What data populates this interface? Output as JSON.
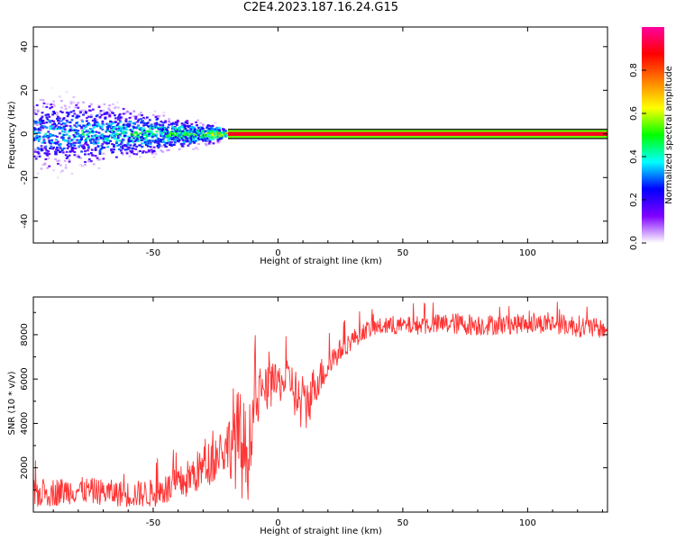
{
  "title": "C2E4.2023.187.16.24.G15",
  "chart_data": [
    {
      "type": "heatmap",
      "title": "",
      "xlabel": "Height of straight line (km)",
      "ylabel": "Frequency (Hz)",
      "xlim": [
        -98,
        132
      ],
      "ylim": [
        -50,
        49
      ],
      "xticks": [
        -50,
        0,
        50,
        100
      ],
      "yticks": [
        -40,
        -20,
        0,
        20,
        40
      ],
      "grid": false,
      "description_of_values": "Spectral power concentrated near 0 Hz; broad scatter (about ±20 Hz) below -20 km, collapsing to a narrow band near 0 Hz above about 25 km with high normalized amplitude.",
      "envelope": [
        {
          "x": -98,
          "half_width_hz": 20,
          "peak_amplitude": 0.35
        },
        {
          "x": -75,
          "half_width_hz": 17,
          "peak_amplitude": 0.4
        },
        {
          "x": -55,
          "half_width_hz": 12,
          "peak_amplitude": 0.45
        },
        {
          "x": -30,
          "half_width_hz": 6,
          "peak_amplitude": 0.5
        },
        {
          "x": -20,
          "half_width_hz": 3,
          "peak_amplitude": 0.8
        },
        {
          "x": 0,
          "half_width_hz": 2,
          "peak_amplitude": 0.85
        },
        {
          "x": 25,
          "half_width_hz": 1.5,
          "peak_amplitude": 0.9
        },
        {
          "x": 132,
          "half_width_hz": 1.5,
          "peak_amplitude": 0.92
        }
      ],
      "colorbar": {
        "label": "Normalized spectral amplitude",
        "ticks": [
          "0.0",
          "0.2",
          "0.4",
          "0.6",
          "0.8"
        ],
        "range": [
          0,
          1
        ],
        "colormap": [
          "#ffffff",
          "#7f00ff",
          "#0000ff",
          "#00ffff",
          "#00ff00",
          "#ffff00",
          "#ff7f00",
          "#ff0000",
          "#ff00a0"
        ]
      }
    },
    {
      "type": "line",
      "title": "",
      "xlabel": "Height of straight line (km)",
      "ylabel": "SNR (10 * v/v)",
      "xlim": [
        -98,
        132
      ],
      "ylim": [
        0,
        9700
      ],
      "xticks": [
        -50,
        0,
        50,
        100
      ],
      "yticks": [
        2000,
        4000,
        6000,
        8000
      ],
      "grid": false,
      "series": [
        {
          "color": "#ff3333",
          "x": [
            -98,
            -90,
            -80,
            -70,
            -60,
            -50,
            -45,
            -40,
            -35,
            -30,
            -25,
            -20,
            -18,
            -15,
            -12,
            -10,
            -8,
            -5,
            0,
            5,
            8,
            10,
            12,
            15,
            20,
            25,
            30,
            35,
            40,
            50,
            60,
            70,
            80,
            90,
            100,
            110,
            120,
            125,
            132
          ],
          "y": [
            800,
            900,
            1000,
            900,
            800,
            850,
            1000,
            1200,
            1600,
            2000,
            2500,
            3000,
            3500,
            3000,
            2500,
            4500,
            5000,
            5500,
            5800,
            6000,
            5000,
            4500,
            5000,
            5800,
            6600,
            7300,
            7800,
            8200,
            8350,
            8400,
            8450,
            8500,
            8450,
            8450,
            8500,
            8500,
            8400,
            8300,
            8250
          ],
          "noise": [
            650,
            650,
            600,
            600,
            600,
            650,
            700,
            800,
            900,
            1000,
            1100,
            1200,
            2200,
            2500,
            2000,
            1400,
            1200,
            1000,
            900,
            900,
            1400,
            1400,
            1200,
            900,
            700,
            500,
            450,
            400,
            400,
            400,
            450,
            500,
            500,
            450,
            450,
            450,
            500,
            500,
            400
          ]
        }
      ]
    }
  ]
}
